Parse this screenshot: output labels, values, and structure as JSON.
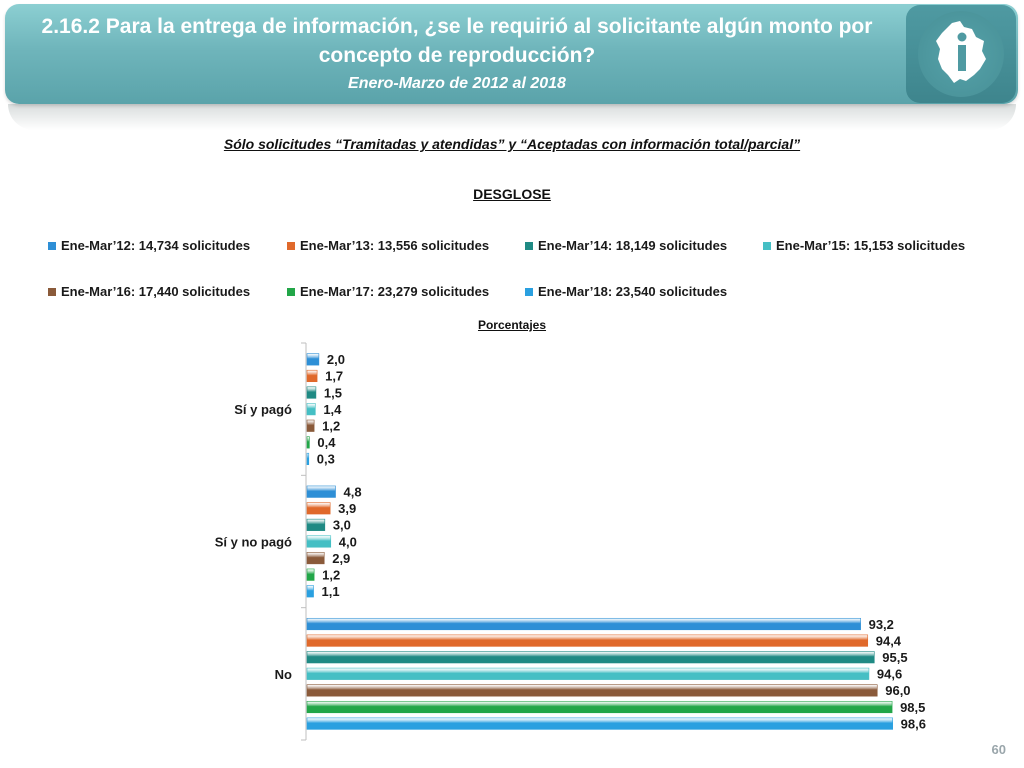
{
  "header": {
    "title": "2.16.2 Para la entrega de información, ¿se le requirió al solicitante algún monto por concepto de reproducción?",
    "subtitle": "Enero-Marzo de 2012 al 2018"
  },
  "note": "Sólo solicitudes “Tramitadas y atendidas” y “Aceptadas con información total/parcial”",
  "page_number": "60",
  "logo_icon": "cdmx-map-info-icon",
  "chart_data": {
    "type": "bar",
    "orientation": "horizontal",
    "title": "DESGLOSE",
    "unit_label": "Porcentajes",
    "categories": [
      "Sí y pagó",
      "Sí y no pagó",
      "No"
    ],
    "xlim": [
      0,
      100
    ],
    "grid": false,
    "legend_position": "top",
    "series": [
      {
        "name": "Ene-Mar’12: 14,734 solicitudes",
        "color": "#2e8fd6",
        "values": [
          2.0,
          4.8,
          93.2
        ],
        "labels": [
          "2,0",
          "4,8",
          "93,2"
        ]
      },
      {
        "name": "Ene-Mar’13: 13,556 solicitudes",
        "color": "#e0692b",
        "values": [
          1.7,
          3.9,
          94.4
        ],
        "labels": [
          "1,7",
          "3,9",
          "94,4"
        ]
      },
      {
        "name": "Ene-Mar’14: 18,149 solicitudes",
        "color": "#1f8a84",
        "values": [
          1.5,
          3.0,
          95.5
        ],
        "labels": [
          "1,5",
          "3,0",
          "95,5"
        ]
      },
      {
        "name": "Ene-Mar’15: 15,153 solicitudes",
        "color": "#45bfc4",
        "values": [
          1.4,
          4.0,
          94.6
        ],
        "labels": [
          "1,4",
          "4,0",
          "94,6"
        ]
      },
      {
        "name": "Ene-Mar’16: 17,440 solicitudes",
        "color": "#8a5a3a",
        "values": [
          1.2,
          2.9,
          96.0
        ],
        "labels": [
          "1,2",
          "2,9",
          "96,0"
        ]
      },
      {
        "name": "Ene-Mar’17: 23,279 solicitudes",
        "color": "#22a648",
        "values": [
          0.4,
          1.2,
          98.5
        ],
        "labels": [
          "0,4",
          "1,2",
          "98,5"
        ]
      },
      {
        "name": "Ene-Mar’18: 23,540 solicitudes",
        "color": "#2aa0e0",
        "values": [
          0.3,
          1.1,
          98.6
        ],
        "labels": [
          "0,3",
          "1,1",
          "98,6"
        ]
      }
    ]
  }
}
